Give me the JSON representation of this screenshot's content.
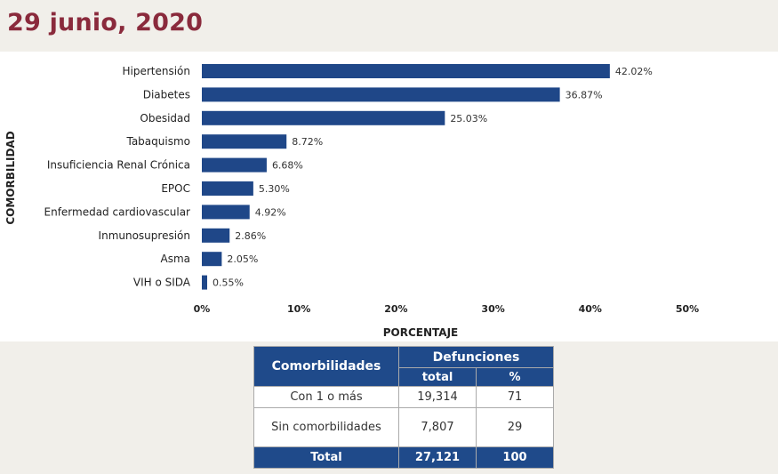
{
  "title": "29 junio, 2020",
  "chart_data": {
    "type": "bar",
    "orientation": "horizontal",
    "categories": [
      "Hipertensión",
      "Diabetes",
      "Obesidad",
      "Tabaquismo",
      "Insuficiencia Renal Crónica",
      "EPOC",
      "Enfermedad cardiovascular",
      "Inmunosupresión",
      "Asma",
      "VIH o SIDA"
    ],
    "values": [
      42.02,
      36.87,
      25.03,
      8.72,
      6.68,
      5.3,
      4.92,
      2.86,
      2.05,
      0.55
    ],
    "value_labels": [
      "42.02%",
      "36.87%",
      "25.03%",
      "8.72%",
      "6.68%",
      "5.30%",
      "4.92%",
      "2.86%",
      "2.05%",
      "0.55%"
    ],
    "xlabel": "PORCENTAJE",
    "ylabel": "COMORBILIDAD",
    "xlim": [
      0,
      50
    ],
    "xticks": [
      "0%",
      "10%",
      "20%",
      "30%",
      "40%",
      "50%"
    ],
    "bar_color": "#1f4788"
  },
  "table": {
    "h_comorb": "Comorbilidades",
    "h_def": "Defunciones",
    "h_total": "total",
    "h_pct": "%",
    "rows": [
      {
        "label": "Con 1 o más",
        "total": "19,314",
        "pct": "71"
      },
      {
        "label": "Sin comorbilidades",
        "total": "7,807",
        "pct": "29"
      }
    ],
    "footer": {
      "label": "Total",
      "total": "27,121",
      "pct": "100"
    }
  }
}
